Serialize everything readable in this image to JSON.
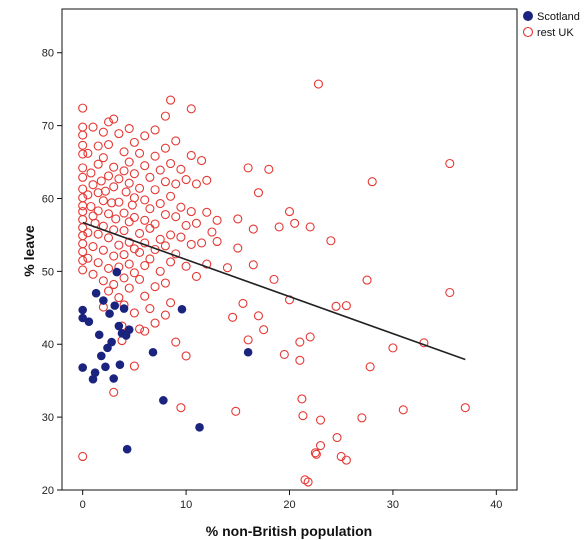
{
  "chart_data": {
    "type": "scatter",
    "title": "",
    "xlabel": "% non-British population",
    "ylabel": "% leave",
    "xlim": [
      -2,
      42
    ],
    "ylim": [
      20,
      86
    ],
    "x_ticks": [
      0,
      10,
      20,
      30,
      40
    ],
    "y_ticks": [
      20,
      30,
      40,
      50,
      60,
      70,
      80
    ],
    "grid": false,
    "legend_placement": "top-right outside",
    "colors": {
      "scotland": "#1a237e",
      "rest_uk": "#e53935",
      "fit_line": "#222222"
    },
    "series": [
      {
        "name": "Scotland",
        "marker": "filled-circle",
        "points": [
          [
            0,
            44.7
          ],
          [
            0,
            43.6
          ],
          [
            0,
            36.8
          ],
          [
            0.6,
            43.1
          ],
          [
            1.0,
            35.2
          ],
          [
            1.2,
            36.1
          ],
          [
            1.3,
            47.0
          ],
          [
            1.6,
            41.3
          ],
          [
            1.8,
            38.4
          ],
          [
            2.0,
            46.0
          ],
          [
            2.2,
            36.9
          ],
          [
            2.4,
            39.5
          ],
          [
            2.6,
            44.2
          ],
          [
            2.8,
            40.3
          ],
          [
            3.0,
            35.3
          ],
          [
            3.1,
            45.3
          ],
          [
            3.3,
            49.9
          ],
          [
            3.5,
            42.5
          ],
          [
            3.6,
            37.2
          ],
          [
            3.8,
            41.5
          ],
          [
            4.0,
            44.9
          ],
          [
            4.2,
            41.2
          ],
          [
            4.5,
            42.0
          ],
          [
            4.3,
            25.6
          ],
          [
            6.8,
            38.9
          ],
          [
            7.8,
            32.3
          ],
          [
            9.6,
            44.8
          ],
          [
            11.3,
            28.6
          ],
          [
            16.0,
            38.9
          ]
        ]
      },
      {
        "name": "rest UK",
        "marker": "open-circle",
        "points": [
          [
            0,
            72.4
          ],
          [
            0,
            69.8
          ],
          [
            0,
            68.7
          ],
          [
            0,
            67.3
          ],
          [
            0,
            66.1
          ],
          [
            0,
            64.2
          ],
          [
            0,
            62.9
          ],
          [
            0,
            61.3
          ],
          [
            0,
            60.1
          ],
          [
            0,
            59.0
          ],
          [
            0,
            58.2
          ],
          [
            0,
            57.1
          ],
          [
            0,
            56.0
          ],
          [
            0,
            54.9
          ],
          [
            0,
            53.8
          ],
          [
            0,
            52.7
          ],
          [
            0,
            51.5
          ],
          [
            0,
            50.2
          ],
          [
            0,
            24.6
          ],
          [
            0.5,
            66.2
          ],
          [
            0.5,
            60.5
          ],
          [
            0.5,
            55.3
          ],
          [
            0.5,
            51.8
          ],
          [
            0.8,
            63.5
          ],
          [
            0.8,
            58.9
          ],
          [
            1.0,
            69.8
          ],
          [
            1.0,
            61.9
          ],
          [
            1.0,
            57.6
          ],
          [
            1.0,
            53.4
          ],
          [
            1.0,
            49.6
          ],
          [
            1.2,
            56.6
          ],
          [
            1.5,
            67.2
          ],
          [
            1.5,
            64.7
          ],
          [
            1.5,
            60.8
          ],
          [
            1.5,
            58.3
          ],
          [
            1.5,
            55.1
          ],
          [
            1.5,
            51.2
          ],
          [
            1.8,
            62.4
          ],
          [
            2.0,
            69.1
          ],
          [
            2.0,
            65.6
          ],
          [
            2.0,
            59.7
          ],
          [
            2.0,
            56.2
          ],
          [
            2.0,
            52.9
          ],
          [
            2.0,
            48.7
          ],
          [
            2.0,
            45.1
          ],
          [
            2.2,
            61.0
          ],
          [
            2.5,
            70.5
          ],
          [
            2.5,
            67.4
          ],
          [
            2.5,
            63.1
          ],
          [
            2.5,
            57.9
          ],
          [
            2.5,
            54.6
          ],
          [
            2.5,
            50.4
          ],
          [
            2.5,
            47.3
          ],
          [
            2.8,
            59.4
          ],
          [
            3.0,
            70.9
          ],
          [
            3.0,
            64.3
          ],
          [
            3.0,
            61.6
          ],
          [
            3.0,
            55.7
          ],
          [
            3.0,
            52.1
          ],
          [
            3.0,
            48.2
          ],
          [
            3.0,
            33.4
          ],
          [
            3.2,
            57.2
          ],
          [
            3.5,
            68.9
          ],
          [
            3.5,
            62.7
          ],
          [
            3.5,
            59.5
          ],
          [
            3.5,
            53.6
          ],
          [
            3.5,
            50.6
          ],
          [
            3.5,
            46.4
          ],
          [
            3.8,
            42.5
          ],
          [
            3.8,
            40.5
          ],
          [
            4.0,
            66.4
          ],
          [
            4.0,
            63.8
          ],
          [
            4.0,
            58.0
          ],
          [
            4.0,
            55.6
          ],
          [
            4.0,
            52.3
          ],
          [
            4.0,
            49.1
          ],
          [
            4.0,
            45.4
          ],
          [
            4.2,
            60.9
          ],
          [
            4.5,
            69.6
          ],
          [
            4.5,
            65.0
          ],
          [
            4.5,
            62.1
          ],
          [
            4.5,
            56.8
          ],
          [
            4.5,
            54.0
          ],
          [
            4.5,
            51.0
          ],
          [
            4.5,
            47.7
          ],
          [
            4.8,
            59.1
          ],
          [
            5.0,
            67.7
          ],
          [
            5.0,
            63.4
          ],
          [
            5.0,
            60.1
          ],
          [
            5.0,
            57.4
          ],
          [
            5.0,
            53.1
          ],
          [
            5.0,
            49.8
          ],
          [
            5.0,
            44.3
          ],
          [
            5.0,
            37.0
          ],
          [
            5.5,
            66.2
          ],
          [
            5.5,
            61.4
          ],
          [
            5.5,
            55.2
          ],
          [
            5.5,
            52.6
          ],
          [
            5.5,
            48.9
          ],
          [
            5.5,
            42.1
          ],
          [
            6.0,
            68.6
          ],
          [
            6.0,
            64.5
          ],
          [
            6.0,
            59.8
          ],
          [
            6.0,
            57.0
          ],
          [
            6.0,
            53.9
          ],
          [
            6.0,
            50.8
          ],
          [
            6.0,
            46.6
          ],
          [
            6.0,
            41.8
          ],
          [
            6.5,
            62.9
          ],
          [
            6.5,
            58.6
          ],
          [
            6.5,
            55.9
          ],
          [
            6.5,
            51.7
          ],
          [
            6.5,
            44.9
          ],
          [
            7.0,
            69.4
          ],
          [
            7.0,
            65.8
          ],
          [
            7.0,
            61.2
          ],
          [
            7.0,
            56.5
          ],
          [
            7.0,
            53.0
          ],
          [
            7.0,
            47.9
          ],
          [
            7.0,
            42.9
          ],
          [
            7.5,
            63.9
          ],
          [
            7.5,
            59.3
          ],
          [
            7.5,
            54.4
          ],
          [
            7.5,
            50.0
          ],
          [
            8.0,
            71.3
          ],
          [
            8.0,
            66.9
          ],
          [
            8.0,
            62.3
          ],
          [
            8.0,
            57.8
          ],
          [
            8.0,
            53.5
          ],
          [
            8.0,
            48.4
          ],
          [
            8.0,
            44.0
          ],
          [
            8.5,
            73.5
          ],
          [
            8.5,
            64.8
          ],
          [
            8.5,
            60.3
          ],
          [
            8.5,
            55.0
          ],
          [
            8.5,
            51.3
          ],
          [
            8.5,
            45.7
          ],
          [
            9.0,
            67.9
          ],
          [
            9.0,
            62.0
          ],
          [
            9.0,
            57.5
          ],
          [
            9.0,
            52.4
          ],
          [
            9.0,
            40.3
          ],
          [
            9.5,
            64.0
          ],
          [
            9.5,
            58.8
          ],
          [
            9.5,
            54.7
          ],
          [
            9.5,
            31.3
          ],
          [
            10.0,
            62.6
          ],
          [
            10.0,
            56.3
          ],
          [
            10.0,
            50.7
          ],
          [
            10.0,
            38.4
          ],
          [
            10.5,
            72.3
          ],
          [
            10.5,
            65.9
          ],
          [
            10.5,
            58.2
          ],
          [
            10.5,
            53.7
          ],
          [
            11.0,
            62.0
          ],
          [
            11.0,
            56.6
          ],
          [
            11.0,
            49.3
          ],
          [
            11.5,
            65.2
          ],
          [
            11.5,
            53.9
          ],
          [
            12.0,
            62.5
          ],
          [
            12.0,
            58.1
          ],
          [
            12.0,
            51.0
          ],
          [
            12.5,
            55.4
          ],
          [
            13.0,
            57.0
          ],
          [
            13.0,
            54.1
          ],
          [
            14.0,
            50.5
          ],
          [
            14.5,
            43.7
          ],
          [
            14.8,
            30.8
          ],
          [
            15.0,
            57.2
          ],
          [
            15.0,
            53.2
          ],
          [
            15.5,
            45.6
          ],
          [
            16.0,
            64.2
          ],
          [
            16.0,
            40.6
          ],
          [
            16.5,
            50.9
          ],
          [
            16.5,
            55.8
          ],
          [
            17.0,
            60.8
          ],
          [
            17.0,
            43.9
          ],
          [
            17.5,
            42.0
          ],
          [
            18.0,
            64.0
          ],
          [
            18.5,
            48.9
          ],
          [
            19.0,
            56.1
          ],
          [
            19.5,
            38.6
          ],
          [
            20.0,
            58.2
          ],
          [
            20.0,
            46.1
          ],
          [
            20.5,
            56.6
          ],
          [
            21.0,
            40.3
          ],
          [
            21.0,
            37.8
          ],
          [
            21.2,
            32.5
          ],
          [
            21.3,
            30.2
          ],
          [
            21.5,
            21.4
          ],
          [
            21.8,
            21.1
          ],
          [
            22.0,
            56.1
          ],
          [
            22.0,
            41.0
          ],
          [
            22.5,
            25.1
          ],
          [
            22.6,
            24.9
          ],
          [
            22.8,
            75.7
          ],
          [
            23.0,
            26.1
          ],
          [
            23.0,
            29.6
          ],
          [
            24.0,
            54.2
          ],
          [
            24.5,
            45.2
          ],
          [
            24.6,
            27.2
          ],
          [
            25.0,
            24.6
          ],
          [
            25.5,
            24.1
          ],
          [
            25.5,
            45.3
          ],
          [
            27.0,
            29.9
          ],
          [
            27.5,
            48.8
          ],
          [
            27.8,
            36.9
          ],
          [
            28.0,
            62.3
          ],
          [
            30.0,
            39.5
          ],
          [
            31.0,
            31.0
          ],
          [
            33.0,
            40.2
          ],
          [
            35.5,
            64.8
          ],
          [
            35.5,
            47.1
          ],
          [
            37.0,
            31.3
          ]
        ]
      }
    ],
    "fit_line": {
      "x": [
        0,
        37
      ],
      "y": [
        56.7,
        37.9
      ]
    }
  },
  "legend": {
    "items": [
      {
        "label": "Scotland",
        "marker": "filled-circle"
      },
      {
        "label": "rest UK",
        "marker": "open-circle"
      }
    ]
  }
}
